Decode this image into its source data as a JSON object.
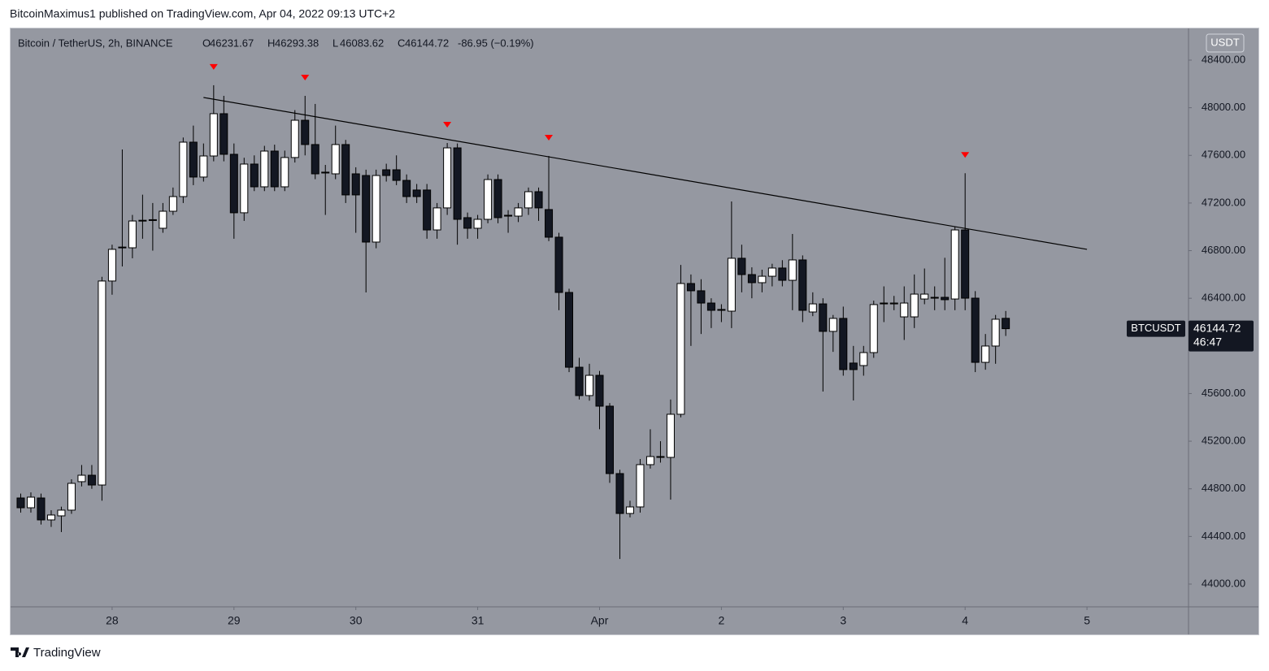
{
  "header": {
    "byline": "BitcoinMaximus1 published on TradingView.com, Apr 04, 2022 09:13 UTC+2"
  },
  "footer": {
    "brand": "TradingView"
  },
  "chart_data": {
    "type": "candlestick",
    "symbol_line": "Bitcoin / TetherUS, 2h, BINANCE",
    "ohlc_labels": [
      "O",
      "H",
      "L",
      "C"
    ],
    "change": "-86.95 (−0.19%)",
    "currency": "USDT",
    "price_tag": {
      "symbol": "BTCUSDT",
      "countdown": "46:47"
    },
    "open": [
      44723,
      44641,
      44723,
      44539,
      44573,
      44621,
      44860,
      44914,
      44832,
      46545,
      46824,
      46824,
      47049,
      47055,
      46988,
      47131,
      47254,
      47711,
      47418,
      47595,
      47950,
      47609,
      47118,
      47527,
      47336,
      47636,
      47336,
      47582,
      47895,
      47691,
      47459,
      47445,
      47691,
      47445,
      47431,
      46872,
      47479,
      47479,
      47390,
      47309,
      47309,
      46974,
      47159,
      47663,
      47077,
      46988,
      47063,
      47397,
      47097,
      47090,
      47159,
      47295,
      47145,
      46913,
      46449,
      45821,
      45583,
      45753,
      45494,
      44928,
      44593,
      44648,
      45003,
      45071,
      45064,
      45426,
      46524,
      46463,
      46360,
      46306,
      46292,
      46736,
      46599,
      46531,
      46585,
      46654,
      46551,
      46722,
      46285,
      46353,
      46122,
      46231,
      45856,
      45835,
      45944,
      46360,
      46353,
      46244,
      46244,
      46394,
      46408,
      46408,
      46394,
      46974,
      46401,
      45862,
      45999,
      46231.67
    ],
    "high": [
      44760,
      44770,
      44760,
      44620,
      44650,
      44880,
      45000,
      45000,
      46580,
      46850,
      47650,
      47100,
      47270,
      47200,
      47200,
      47330,
      47750,
      47850,
      47700,
      48189,
      48100,
      47700,
      47580,
      47600,
      47680,
      47690,
      47640,
      47980,
      48100,
      48032,
      47520,
      47850,
      47730,
      47500,
      47480,
      47480,
      47530,
      47600,
      47440,
      47360,
      47360,
      47200,
      47704,
      47700,
      47120,
      47100,
      47440,
      47440,
      47140,
      47200,
      47330,
      47330,
      47595,
      46950,
      46480,
      45900,
      45850,
      45790,
      45520,
      44960,
      44700,
      45050,
      45300,
      45200,
      45550,
      46680,
      46600,
      46560,
      46400,
      46350,
      47213,
      46850,
      46660,
      46640,
      46690,
      46720,
      46940,
      46760,
      46450,
      46400,
      46260,
      46330,
      46000,
      46000,
      46380,
      46500,
      46420,
      46500,
      46600,
      46650,
      46500,
      46740,
      47000,
      47450,
      46460,
      46100,
      46260,
      46293.38
    ],
    "low": [
      44600,
      44600,
      44500,
      44480,
      44437,
      44590,
      44820,
      44800,
      44700,
      46430,
      46667,
      46736,
      46900,
      46800,
      46950,
      47100,
      47200,
      47350,
      47380,
      47550,
      47550,
      46900,
      47050,
      47300,
      47300,
      47300,
      47300,
      47540,
      47600,
      47400,
      47100,
      47400,
      47200,
      46950,
      46449,
      46820,
      47380,
      47350,
      47200,
      47200,
      46900,
      46900,
      47100,
      46850,
      46900,
      46900,
      47030,
      47030,
      46950,
      47040,
      47100,
      47050,
      46880,
      46300,
      45780,
      45550,
      45540,
      45300,
      44850,
      44211,
      44560,
      44600,
      44970,
      45020,
      44709,
      45400,
      46000,
      46100,
      46150,
      46200,
      46150,
      46450,
      46400,
      46450,
      46500,
      46500,
      46300,
      46200,
      46250,
      45617,
      45950,
      45750,
      45542,
      45750,
      45900,
      46200,
      46300,
      46050,
      46150,
      46350,
      46300,
      46300,
      46300,
      46300,
      45780,
      45800,
      45850,
      46083.62
    ],
    "close": [
      44641,
      44730,
      44539,
      44580,
      44621,
      44846,
      44914,
      44832,
      46545,
      46811,
      46830,
      47049,
      47055,
      47060,
      47131,
      47254,
      47711,
      47418,
      47595,
      47950,
      47609,
      47118,
      47527,
      47336,
      47636,
      47336,
      47582,
      47895,
      47691,
      47445,
      47452,
      47691,
      47268,
      47268,
      46872,
      47431,
      47431,
      47390,
      47254,
      47254,
      46974,
      47159,
      47663,
      47063,
      46988,
      47063,
      47397,
      47077,
      47090,
      47159,
      47295,
      47159,
      46913,
      46449,
      45821,
      45583,
      45753,
      45494,
      44928,
      44593,
      44648,
      45003,
      45071,
      45064,
      45426,
      46524,
      46463,
      46360,
      46299,
      46299,
      46736,
      46599,
      46531,
      46585,
      46654,
      46551,
      46722,
      46299,
      46353,
      46122,
      46231,
      45801,
      45801,
      45944,
      46347,
      46353,
      46360,
      46360,
      46435,
      46435,
      46401,
      46388,
      46974,
      46401,
      45862,
      45999,
      46224,
      46144.72
    ],
    "markers": [
      19,
      28,
      42,
      52,
      93
    ],
    "trendline": {
      "x": [
        18,
        105
      ],
      "y": [
        48086,
        46811
      ]
    },
    "xlim": [
      -1,
      115
    ],
    "xticks": [
      {
        "value": 9,
        "label": "28"
      },
      {
        "value": 21,
        "label": "29"
      },
      {
        "value": 33,
        "label": "30"
      },
      {
        "value": 45,
        "label": "31"
      },
      {
        "value": 57,
        "label": "Apr"
      },
      {
        "value": 69,
        "label": "2"
      },
      {
        "value": 81,
        "label": "3"
      },
      {
        "value": 93,
        "label": "4"
      },
      {
        "value": 105,
        "label": "5"
      }
    ],
    "ylim": [
      43809,
      48666
    ],
    "yticks": [
      {
        "value": 44000,
        "label": "44000.00"
      },
      {
        "value": 44400,
        "label": "44400.00"
      },
      {
        "value": 44800,
        "label": "44800.00"
      },
      {
        "value": 45200,
        "label": "45200.00"
      },
      {
        "value": 45600,
        "label": "45600.00"
      },
      {
        "value": 46000,
        "label": "46000.00"
      },
      {
        "value": 46400,
        "label": "46400.00"
      },
      {
        "value": 46800,
        "label": "46800.00"
      },
      {
        "value": 47200,
        "label": "47200.00"
      },
      {
        "value": 47600,
        "label": "47600.00"
      },
      {
        "value": 48000,
        "label": "48000.00"
      },
      {
        "value": 48400,
        "label": "48400.00"
      }
    ],
    "up_color": "#ffffff",
    "down_color": "#131722",
    "wick_color": "#000000",
    "marker_color": "#ff0000",
    "background": "#9598a1"
  }
}
